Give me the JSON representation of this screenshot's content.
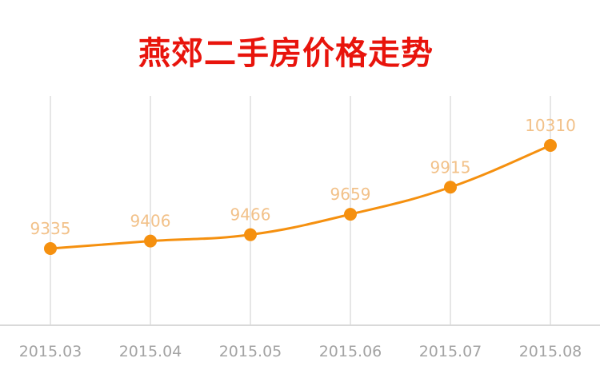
{
  "chart_data": {
    "type": "line",
    "title": "燕郊二手房价格走势",
    "xlabel": "",
    "ylabel": "",
    "categories": [
      "2015.03",
      "2015.04",
      "2015.05",
      "2015.06",
      "2015.07",
      "2015.08"
    ],
    "values": [
      9335,
      9406,
      9466,
      9659,
      9915,
      10310
    ],
    "data_labels": [
      "9335",
      "9406",
      "9466",
      "9659",
      "9915",
      "10310"
    ],
    "grid": "vertical",
    "legend": "none"
  },
  "colors": {
    "title": "#e8140c",
    "line": "#f5900f",
    "marker": "#f5900f",
    "data_label": "#f2c189",
    "grid": "#e6e6e6",
    "axis": "#d9d9d9",
    "tick_label": "#a3a3a3"
  }
}
